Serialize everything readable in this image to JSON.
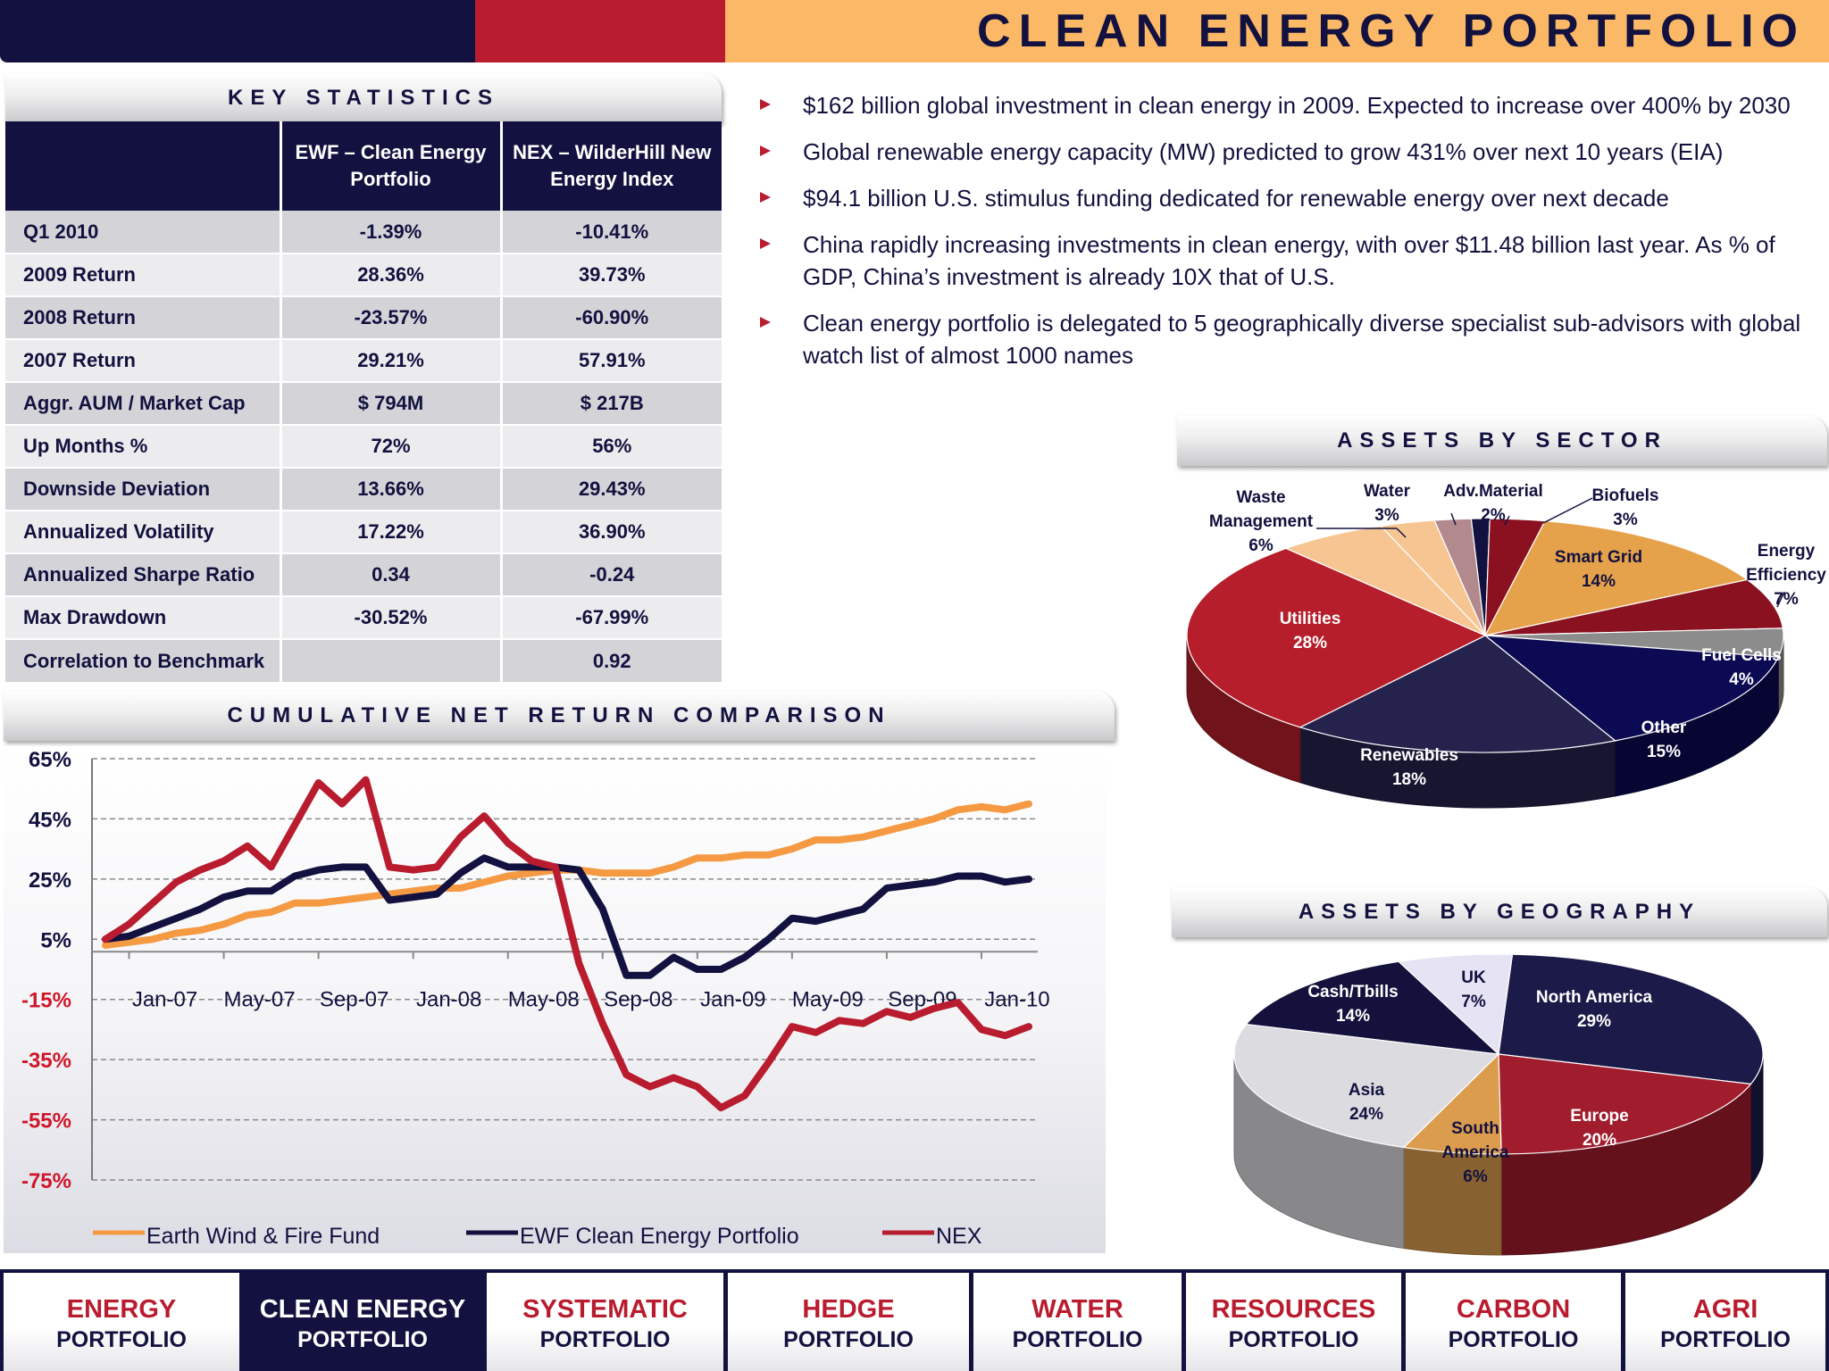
{
  "page_title": "CLEAN ENERGY PORTFOLIO",
  "colors": {
    "navy": "#12113f",
    "red": "#b81c2e",
    "orange": "#fbb867"
  },
  "key_statistics": {
    "title": "KEY STATISTICS",
    "columns": [
      "",
      "EWF – Clean Energy Portfolio",
      "NEX – WilderHill New Energy Index"
    ],
    "rows": [
      {
        "label": "Q1 2010",
        "ewf": "-1.39%",
        "nex": "-10.41%"
      },
      {
        "label": "2009 Return",
        "ewf": "28.36%",
        "nex": "39.73%"
      },
      {
        "label": "2008 Return",
        "ewf": "-23.57%",
        "nex": "-60.90%"
      },
      {
        "label": "2007 Return",
        "ewf": "29.21%",
        "nex": "57.91%"
      },
      {
        "label": "Aggr. AUM / Market Cap",
        "ewf": "$ 794M",
        "nex": "$ 217B"
      },
      {
        "label": "Up Months %",
        "ewf": "72%",
        "nex": "56%"
      },
      {
        "label": "Downside Deviation",
        "ewf": "13.66%",
        "nex": "29.43%"
      },
      {
        "label": "Annualized Volatility",
        "ewf": "17.22%",
        "nex": "36.90%"
      },
      {
        "label": "Annualized  Sharpe Ratio",
        "ewf": "0.34",
        "nex": "-0.24"
      },
      {
        "label": "Max Drawdown",
        "ewf": "-30.52%",
        "nex": "-67.99%"
      },
      {
        "label": "Correlation to Benchmark",
        "ewf": "",
        "nex": "0.92"
      }
    ]
  },
  "bullets": [
    "$162 billion global investment in clean energy in 2009.  Expected to increase over 400% by 2030",
    "Global renewable energy capacity (MW) predicted to grow 431% over next 10 years (EIA)",
    "$94.1 billion U.S. stimulus funding dedicated for renewable energy over next decade",
    "China rapidly increasing investments in clean energy, with over $11.48 billion last year.  As % of GDP, China’s investment is already 10X that of U.S.",
    "Clean energy portfolio is delegated to 5 geographically diverse specialist sub-advisors with global watch list of almost 1000 names"
  ],
  "chart_data": [
    {
      "type": "line",
      "title": "CUMULATIVE NET RETURN COMPARISON",
      "ylim": [
        -75,
        65
      ],
      "y_ticks": [
        "65%",
        "45%",
        "25%",
        "5%",
        "-15%",
        "-35%",
        "-55%",
        "-75%"
      ],
      "y_tick_values": [
        65,
        45,
        25,
        5,
        -15,
        -35,
        -55,
        -75
      ],
      "x_tick_labels": [
        "Jan-07",
        "May-07",
        "Sep-07",
        "Jan-08",
        "May-08",
        "Sep-08",
        "Jan-09",
        "May-09",
        "Sep-09",
        "Jan-10"
      ],
      "x": [
        "Dec-06",
        "Jan-07",
        "Feb-07",
        "Mar-07",
        "Apr-07",
        "May-07",
        "Jun-07",
        "Jul-07",
        "Aug-07",
        "Sep-07",
        "Oct-07",
        "Nov-07",
        "Dec-07",
        "Jan-08",
        "Feb-08",
        "Mar-08",
        "Apr-08",
        "May-08",
        "Jun-08",
        "Jul-08",
        "Aug-08",
        "Sep-08",
        "Oct-08",
        "Nov-08",
        "Dec-08",
        "Jan-09",
        "Feb-09",
        "Mar-09",
        "Apr-09",
        "May-09",
        "Jun-09",
        "Jul-09",
        "Aug-09",
        "Sep-09",
        "Oct-09",
        "Nov-09",
        "Dec-09",
        "Jan-10",
        "Feb-10",
        "Mar-10"
      ],
      "series": [
        {
          "name": "Earth Wind & Fire Fund",
          "color": "#f59a43",
          "values": [
            3,
            4,
            5,
            7,
            8,
            10,
            13,
            14,
            17,
            17,
            18,
            19,
            20,
            21,
            22,
            22,
            24,
            26,
            27,
            28,
            28,
            27,
            27,
            27,
            29,
            32,
            32,
            33,
            33,
            35,
            38,
            38,
            39,
            41,
            43,
            45,
            48,
            49,
            48,
            50
          ]
        },
        {
          "name": "EWF Clean Energy Portfolio",
          "color": "#12113f",
          "values": [
            5,
            6,
            9,
            12,
            15,
            19,
            21,
            21,
            26,
            28,
            29,
            29,
            18,
            19,
            20,
            27,
            32,
            29,
            29,
            29,
            28,
            15,
            -7,
            -7,
            -1,
            -5,
            -5,
            -1,
            5,
            12,
            11,
            13,
            15,
            22,
            23,
            24,
            26,
            26,
            24,
            25
          ]
        },
        {
          "name": "NEX",
          "color": "#b81c2e",
          "values": [
            5,
            10,
            17,
            24,
            28,
            31,
            36,
            29,
            43,
            57,
            50,
            58,
            29,
            28,
            29,
            39,
            46,
            37,
            31,
            29,
            -3,
            -23,
            -40,
            -44,
            -41,
            -44,
            -51,
            -47,
            -36,
            -24,
            -26,
            -22,
            -23,
            -19,
            -21,
            -18,
            -16,
            -25,
            -27,
            -24
          ]
        }
      ]
    },
    {
      "type": "pie",
      "title": "ASSETS BY SECTOR",
      "slices": [
        {
          "label": "Water",
          "value": 3,
          "color": "#f7c592"
        },
        {
          "label": "Adv.Material",
          "value": 2,
          "color": "#b28a8e"
        },
        {
          "label": "",
          "value": 1,
          "color": "#12113f"
        },
        {
          "label": "Biofuels",
          "value": 3,
          "color": "#8b1120"
        },
        {
          "label": "Smart Grid",
          "value": 14,
          "color": "#e6a24a"
        },
        {
          "label": "Energy Efficiency",
          "value": 7,
          "color": "#8a1220"
        },
        {
          "label": "Fuel Cells",
          "value": 4,
          "color": "#8c8c8c"
        },
        {
          "label": "Other",
          "value": 15,
          "color": "#0b0a52"
        },
        {
          "label": "Renewables",
          "value": 18,
          "color": "#25224e"
        },
        {
          "label": "Utilities",
          "value": 28,
          "color": "#b51e2a"
        },
        {
          "label": "Waste Management",
          "value": 6,
          "color": "#f7c592"
        }
      ],
      "labels": [
        {
          "lines": [
            "Waste",
            "Management",
            "6%"
          ],
          "color": "#12113f"
        },
        {
          "lines": [
            "Water",
            "3%"
          ],
          "color": "#12113f"
        },
        {
          "lines": [
            "Adv.Material",
            "2%"
          ],
          "color": "#12113f"
        },
        {
          "lines": [
            "Biofuels",
            "3%"
          ],
          "color": "#12113f"
        },
        {
          "lines": [
            "Smart Grid",
            "14%"
          ],
          "color": "#12113f"
        },
        {
          "lines": [
            "Energy",
            "Efficiency",
            "7%"
          ],
          "color": "#12113f"
        },
        {
          "lines": [
            "Fuel Cells",
            "4%"
          ],
          "color": "#ffffff"
        },
        {
          "lines": [
            "Other",
            "15%"
          ],
          "color": "#ffffff"
        },
        {
          "lines": [
            "Renewables",
            "18%"
          ],
          "color": "#ffffff"
        },
        {
          "lines": [
            "Utilities",
            "28%"
          ],
          "color": "#ffffff"
        }
      ]
    },
    {
      "type": "pie",
      "title": "ASSETS BY GEOGRAPHY",
      "slices": [
        {
          "label": "North America",
          "value": 29,
          "color": "#1c1a48"
        },
        {
          "label": "Europe",
          "value": 20,
          "color": "#a11c2d"
        },
        {
          "label": "South America",
          "value": 6,
          "color": "#dc9c4e"
        },
        {
          "label": "Asia",
          "value": 24,
          "color": "#dcdbe0"
        },
        {
          "label": "Cash/Tbills",
          "value": 14,
          "color": "#14123c"
        },
        {
          "label": "UK",
          "value": 7,
          "color": "#e6e4f4"
        }
      ],
      "labels": [
        {
          "lines": [
            "North America",
            "29%"
          ],
          "color": "#ffffff"
        },
        {
          "lines": [
            "Europe",
            "20%"
          ],
          "color": "#ffffff"
        },
        {
          "lines": [
            "South",
            "America",
            "6%"
          ],
          "color": "#12113f"
        },
        {
          "lines": [
            "Asia",
            "24%"
          ],
          "color": "#12113f"
        },
        {
          "lines": [
            "Cash/Tbills",
            "14%"
          ],
          "color": "#ffffff"
        },
        {
          "lines": [
            "UK",
            "7%"
          ],
          "color": "#12113f"
        }
      ]
    }
  ],
  "nav": [
    {
      "line1": "ENERGY",
      "line2": "PORTFOLIO",
      "active": false
    },
    {
      "line1": "CLEAN ENERGY",
      "line2": "PORTFOLIO",
      "active": true
    },
    {
      "line1": "SYSTEMATIC",
      "line2": "PORTFOLIO",
      "active": false
    },
    {
      "line1": "HEDGE",
      "line2": "PORTFOLIO",
      "active": false
    },
    {
      "line1": "WATER",
      "line2": "PORTFOLIO",
      "active": false
    },
    {
      "line1": "RESOURCES",
      "line2": "PORTFOLIO",
      "active": false
    },
    {
      "line1": "CARBON",
      "line2": "PORTFOLIO",
      "active": false
    },
    {
      "line1": "AGRI",
      "line2": "PORTFOLIO",
      "active": false
    }
  ]
}
